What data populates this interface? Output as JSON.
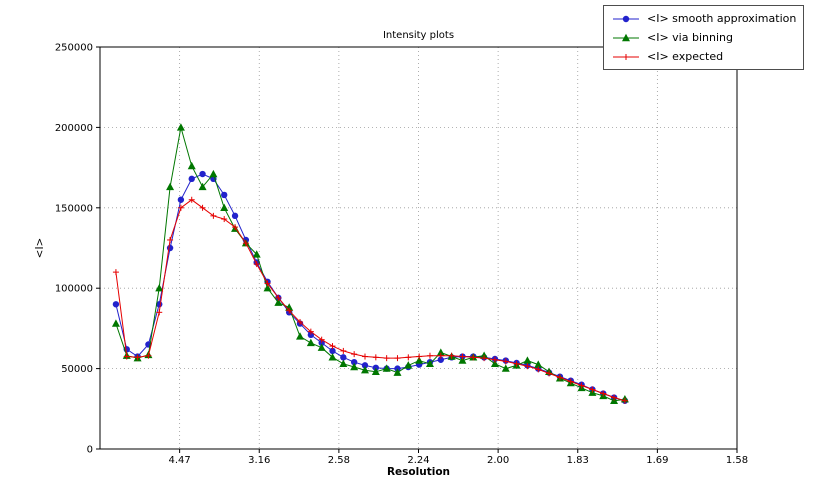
{
  "chart_data": {
    "type": "line",
    "title": "Intensity plots",
    "xlabel": "Resolution",
    "ylabel": "<I>",
    "x_axis_note": "x axis linear in 1/d^2; tick labels show resolution d",
    "xlim": [
      0,
      0.4
    ],
    "ylim": [
      0,
      250000
    ],
    "grid": true,
    "legend_position": "upper right",
    "xticks": [
      {
        "pos": 0.05,
        "label": "4.47"
      },
      {
        "pos": 0.1,
        "label": "3.16"
      },
      {
        "pos": 0.15,
        "label": "2.58"
      },
      {
        "pos": 0.2,
        "label": "2.24"
      },
      {
        "pos": 0.25,
        "label": "2.00"
      },
      {
        "pos": 0.3,
        "label": "1.83"
      },
      {
        "pos": 0.35,
        "label": "1.69"
      },
      {
        "pos": 0.4,
        "label": "1.58"
      }
    ],
    "yticks": [
      {
        "pos": 0,
        "label": "0"
      },
      {
        "pos": 50000,
        "label": "50000"
      },
      {
        "pos": 100000,
        "label": "100000"
      },
      {
        "pos": 150000,
        "label": "150000"
      },
      {
        "pos": 200000,
        "label": "200000"
      },
      {
        "pos": 250000,
        "label": "250000"
      }
    ],
    "x": [
      0.01,
      0.0168,
      0.0236,
      0.0304,
      0.0372,
      0.044,
      0.0508,
      0.0576,
      0.0644,
      0.0712,
      0.078,
      0.0848,
      0.0916,
      0.0984,
      0.1052,
      0.112,
      0.1188,
      0.1256,
      0.1324,
      0.1392,
      0.146,
      0.1528,
      0.1596,
      0.1664,
      0.1732,
      0.18,
      0.1868,
      0.1936,
      0.2004,
      0.2072,
      0.214,
      0.2208,
      0.2276,
      0.2344,
      0.2412,
      0.248,
      0.2548,
      0.2616,
      0.2684,
      0.2752,
      0.282,
      0.2888,
      0.2956,
      0.3024,
      0.3092,
      0.316,
      0.3228,
      0.3296
    ],
    "series": [
      {
        "name": "<I> smooth approximation",
        "color": "#2222cc",
        "marker": "circle",
        "values": [
          90000,
          62000,
          57500,
          65000,
          90000,
          125000,
          155000,
          168000,
          171000,
          168000,
          158000,
          145000,
          130000,
          116000,
          104000,
          94000,
          85000,
          78000,
          71000,
          66000,
          61000,
          57000,
          54000,
          52000,
          50500,
          50000,
          50000,
          51000,
          52500,
          54000,
          55500,
          57000,
          57500,
          57500,
          57000,
          56000,
          55000,
          53500,
          52000,
          50000,
          47500,
          45000,
          42500,
          40000,
          37000,
          34500,
          32000,
          30000
        ]
      },
      {
        "name": "<I> via binning",
        "color": "#007700",
        "marker": "triangle",
        "values": [
          78000,
          58000,
          56500,
          58500,
          100000,
          163000,
          200000,
          176000,
          163000,
          171000,
          150000,
          137000,
          128000,
          121000,
          100000,
          91000,
          88000,
          70000,
          66000,
          63000,
          57000,
          53000,
          51000,
          49000,
          48000,
          50000,
          47500,
          52000,
          55000,
          53000,
          60000,
          57500,
          55000,
          57000,
          58000,
          53000,
          50000,
          52000,
          55000,
          52500,
          48000,
          44000,
          41000,
          38000,
          35000,
          33000,
          30000,
          31000
        ]
      },
      {
        "name": "<I> expected",
        "color": "#e60000",
        "marker": "plus",
        "values": [
          110000,
          57500,
          57000,
          58000,
          85000,
          130000,
          150000,
          155000,
          150000,
          145000,
          143000,
          138000,
          128000,
          115000,
          103000,
          94000,
          86000,
          79000,
          73000,
          68000,
          64000,
          61000,
          59000,
          57500,
          57000,
          56500,
          56500,
          57000,
          57500,
          58000,
          58000,
          58000,
          57500,
          57000,
          56500,
          55500,
          54500,
          53000,
          51500,
          49500,
          47000,
          44500,
          42000,
          39500,
          37000,
          34500,
          32000,
          30000
        ]
      }
    ]
  }
}
